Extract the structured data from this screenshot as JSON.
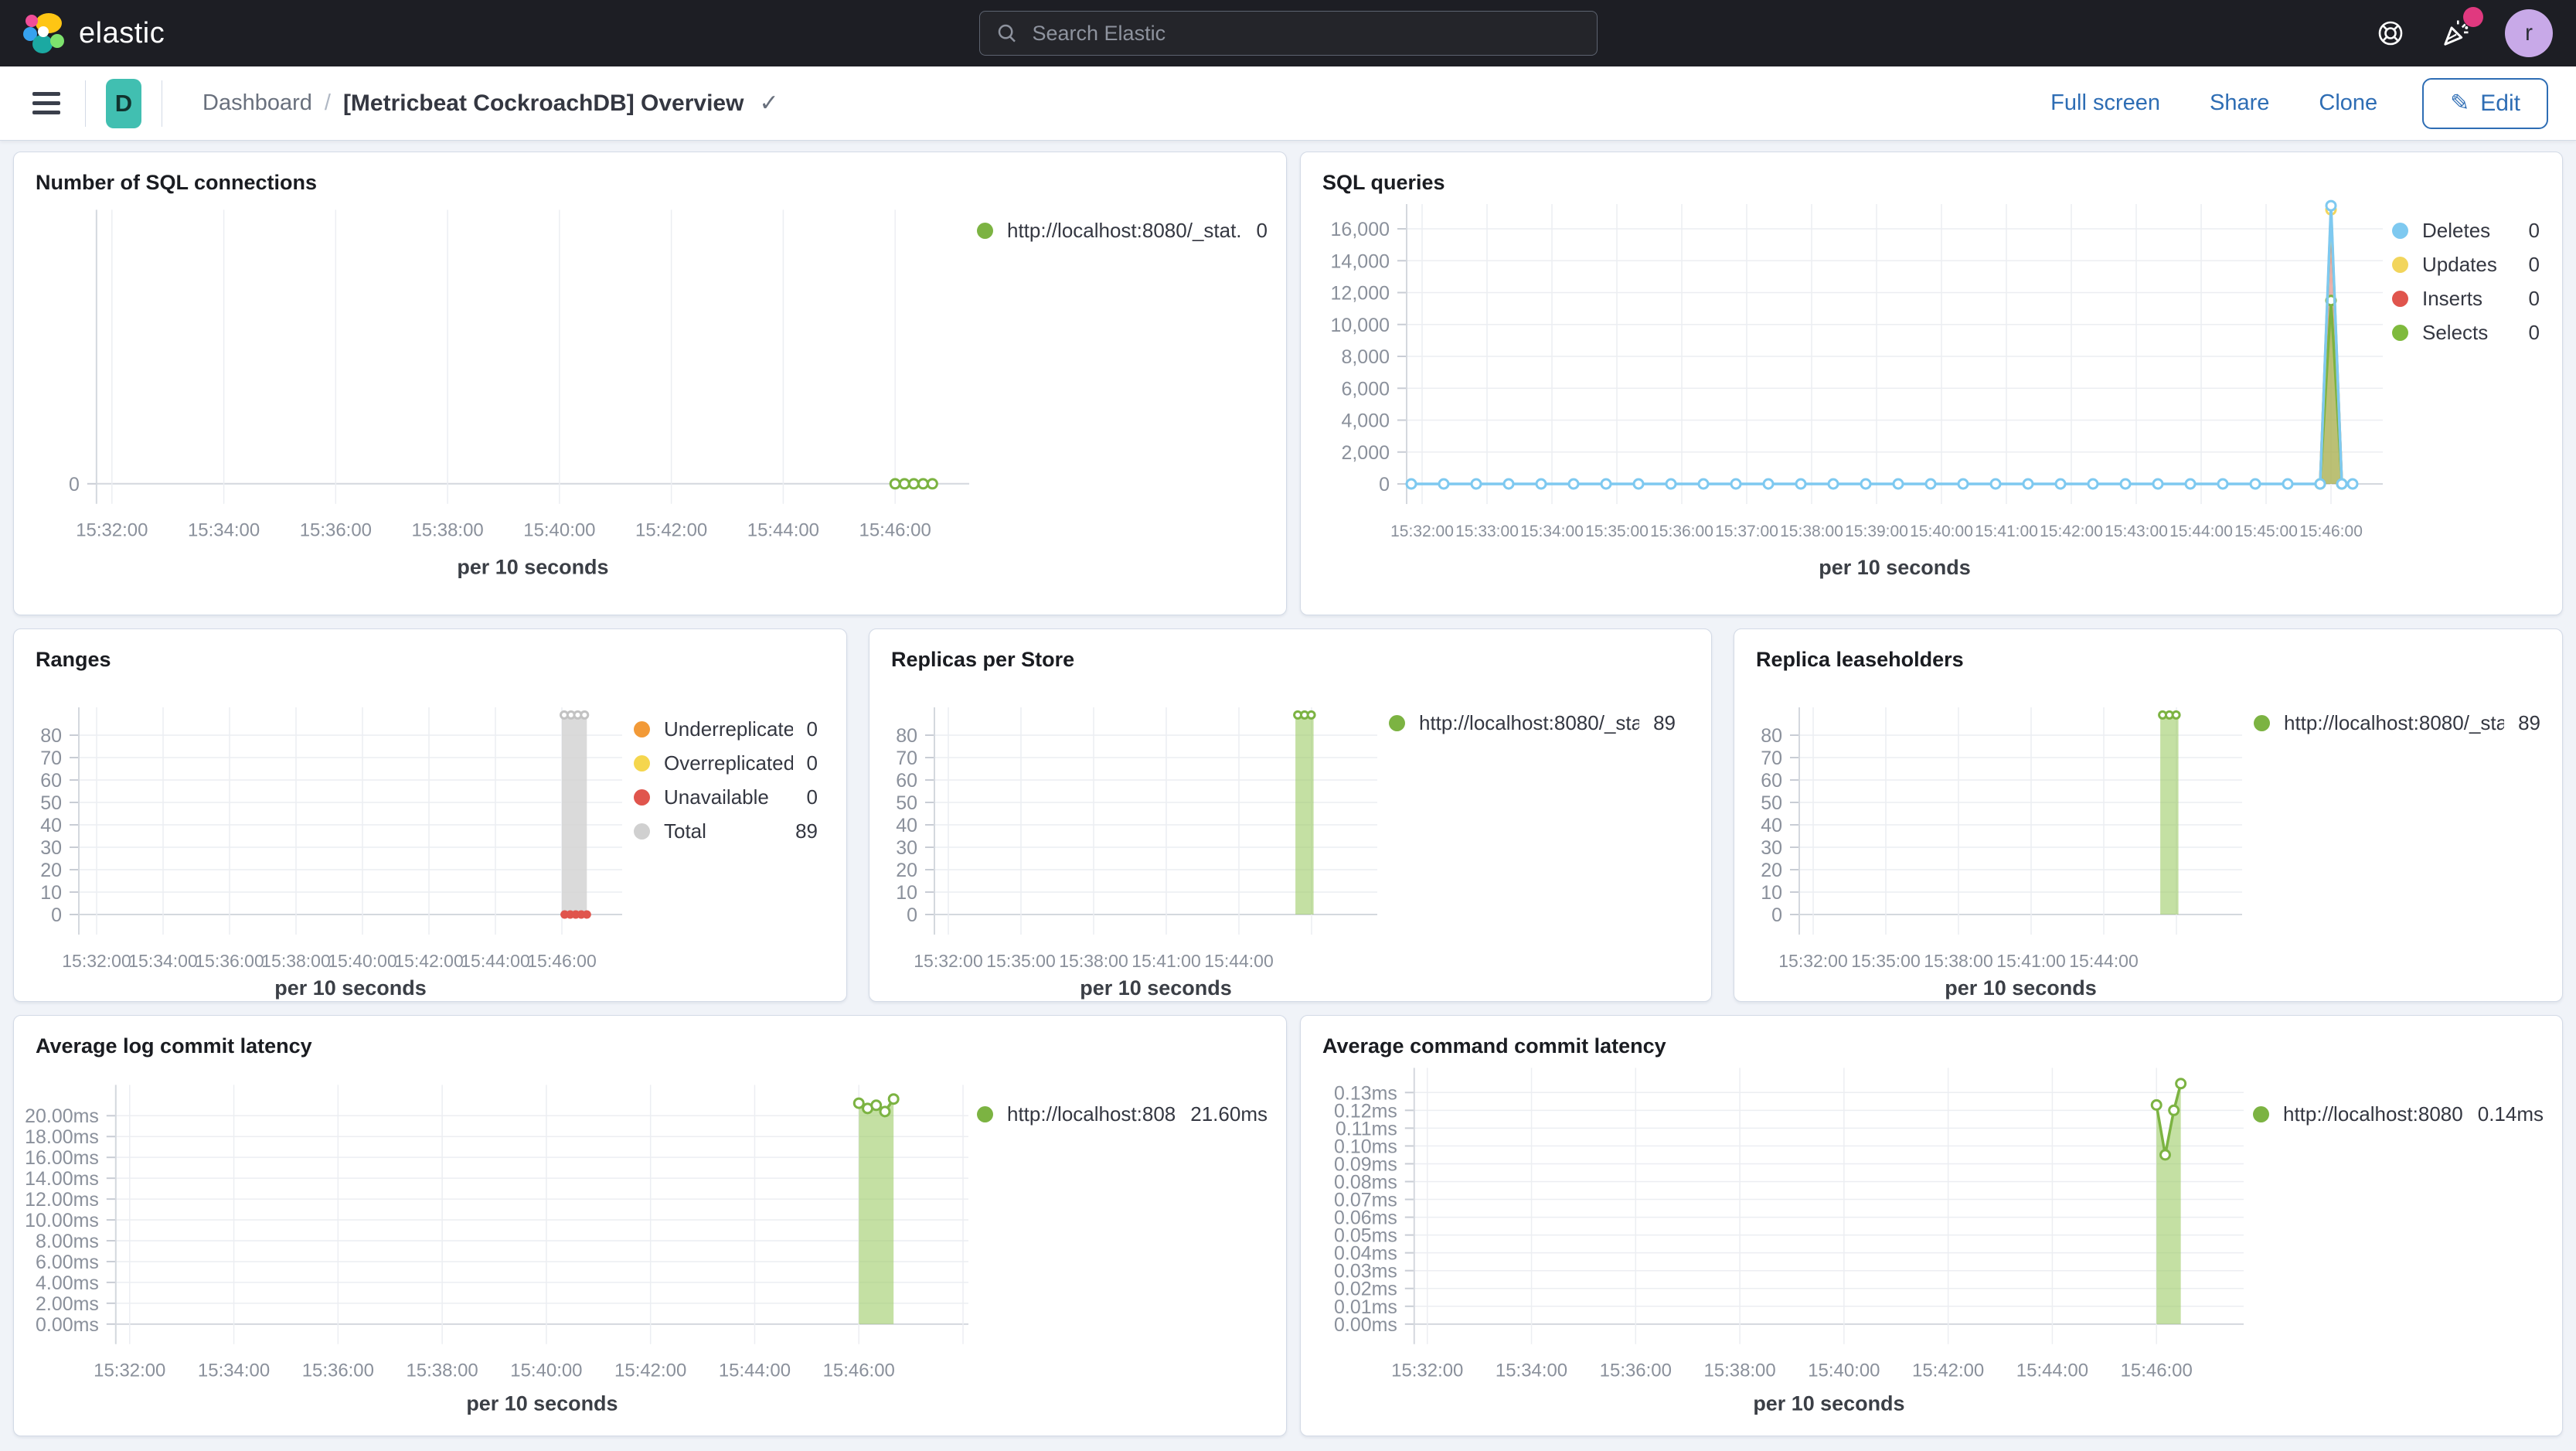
{
  "header": {
    "brand": "elastic",
    "search_placeholder": "Search Elastic",
    "avatar_initial": "r"
  },
  "toolbar": {
    "badge_initial": "D",
    "breadcrumb_app": "Dashboard",
    "breadcrumb_sep": "/",
    "title": "[Metricbeat CockroachDB] Overview",
    "actions": [
      "Full screen",
      "Share",
      "Clone"
    ],
    "edit_label": "Edit"
  },
  "colors": {
    "accent_blue": "#2e6db4",
    "teal_badge": "#41bfb1",
    "series_green": "#7CB342",
    "series_blue": "#7EC9F0",
    "series_yellow": "#F2D55C",
    "series_red": "#E0554D",
    "series_orange": "#F29A38",
    "series_gray": "#C9C9C9"
  },
  "panels": [
    {
      "title": "Number of SQL connections",
      "legend": [
        {
          "label": "http://localhost:8080/_stat...",
          "value": "0",
          "color": "#7CB342"
        }
      ],
      "chart_data": {
        "type": "line",
        "title": "Number of SQL connections",
        "x_axis_label": "per 10 seconds",
        "legend_position": "right",
        "grid": true,
        "ylim": [
          0,
          1
        ],
        "x_ticks": [
          "15:32:00",
          "15:34:00",
          "15:36:00",
          "15:38:00",
          "15:40:00",
          "15:42:00",
          "15:44:00",
          "15:46:00"
        ],
        "y_ticks": [
          {
            "v": 0,
            "label": "0"
          }
        ],
        "series": [
          {
            "name": "http://localhost:8080/_stat...",
            "style": "dotline",
            "color": "#7CB342",
            "points": [
              [
                "15:46:00",
                0
              ],
              [
                "15:46:10",
                0
              ],
              [
                "15:46:20",
                0
              ],
              [
                "15:46:30",
                0
              ],
              [
                "15:46:40",
                0
              ]
            ]
          }
        ]
      }
    },
    {
      "title": "SQL queries",
      "legend": [
        {
          "label": "Deletes",
          "value": "0",
          "color": "#7EC9F0"
        },
        {
          "label": "Updates",
          "value": "0",
          "color": "#F2D55C"
        },
        {
          "label": "Inserts",
          "value": "0",
          "color": "#E0554D"
        },
        {
          "label": "Selects",
          "value": "0",
          "color": "#7FBA3D"
        }
      ],
      "chart_data": {
        "type": "line",
        "title": "SQL queries",
        "x_axis_label": "per 10 seconds",
        "legend_position": "right",
        "grid": true,
        "ylim": [
          0,
          17500
        ],
        "x_ticks": [
          "15:32:00",
          "15:33:00",
          "15:34:00",
          "15:35:00",
          "15:36:00",
          "15:37:00",
          "15:38:00",
          "15:39:00",
          "15:40:00",
          "15:41:00",
          "15:42:00",
          "15:43:00",
          "15:44:00",
          "15:45:00",
          "15:46:00"
        ],
        "y_ticks": [
          {
            "v": 0,
            "label": "0"
          },
          {
            "v": 2000,
            "label": "2,000"
          },
          {
            "v": 4000,
            "label": "4,000"
          },
          {
            "v": 6000,
            "label": "6,000"
          },
          {
            "v": 8000,
            "label": "8,000"
          },
          {
            "v": 10000,
            "label": "10,000"
          },
          {
            "v": 12000,
            "label": "12,000"
          },
          {
            "v": 14000,
            "label": "14,000"
          },
          {
            "v": 16000,
            "label": "16,000"
          }
        ],
        "series": [
          {
            "name": "Inserts",
            "style": "area",
            "color": "#E0554D",
            "fill": "rgba(224,95,82,0.45)",
            "markers": false,
            "points": [
              [
                "15:45:50",
                0
              ],
              [
                "15:46:00",
                17000
              ],
              [
                "15:46:10",
                0
              ]
            ]
          },
          {
            "name": "Selects",
            "style": "area",
            "color": "#7CB342",
            "fill": "rgba(151,199,77,0.6)",
            "markers": true,
            "points": [
              [
                "15:45:50",
                0
              ],
              [
                "15:46:00",
                11500
              ],
              [
                "15:46:10",
                0
              ]
            ]
          },
          {
            "name": "Updates",
            "style": "line",
            "color": "#F2D55C",
            "peak_marker": true,
            "points": [
              [
                "15:45:50",
                0
              ],
              [
                "15:46:00",
                17200
              ],
              [
                "15:46:10",
                0
              ]
            ]
          },
          {
            "name": "Deletes",
            "style": "dotline",
            "color": "#7EC9F0",
            "points": [
              [
                "15:31:50",
                0
              ],
              [
                "15:32:20",
                0
              ],
              [
                "15:32:50",
                0
              ],
              [
                "15:33:20",
                0
              ],
              [
                "15:33:50",
                0
              ],
              [
                "15:34:20",
                0
              ],
              [
                "15:34:50",
                0
              ],
              [
                "15:35:20",
                0
              ],
              [
                "15:35:50",
                0
              ],
              [
                "15:36:20",
                0
              ],
              [
                "15:36:50",
                0
              ],
              [
                "15:37:20",
                0
              ],
              [
                "15:37:50",
                0
              ],
              [
                "15:38:20",
                0
              ],
              [
                "15:38:50",
                0
              ],
              [
                "15:39:20",
                0
              ],
              [
                "15:39:50",
                0
              ],
              [
                "15:40:20",
                0
              ],
              [
                "15:40:50",
                0
              ],
              [
                "15:41:20",
                0
              ],
              [
                "15:41:50",
                0
              ],
              [
                "15:42:20",
                0
              ],
              [
                "15:42:50",
                0
              ],
              [
                "15:43:20",
                0
              ],
              [
                "15:43:50",
                0
              ],
              [
                "15:44:20",
                0
              ],
              [
                "15:44:50",
                0
              ],
              [
                "15:45:20",
                0
              ],
              [
                "15:45:50",
                0
              ],
              [
                "15:46:00",
                17450
              ],
              [
                "15:46:10",
                0
              ],
              [
                "15:46:20",
                0
              ]
            ]
          }
        ]
      }
    },
    {
      "title": "Ranges",
      "legend": [
        {
          "label": "Underreplicated",
          "value": "0",
          "color": "#F29A38"
        },
        {
          "label": "Overreplicated",
          "value": "0",
          "color": "#F5D64E"
        },
        {
          "label": "Unavailable",
          "value": "0",
          "color": "#E0554D"
        },
        {
          "label": "Total",
          "value": "89",
          "color": "#D0D0D0"
        }
      ],
      "chart_data": {
        "type": "bar",
        "title": "Ranges",
        "x_axis_label": "per 10 seconds",
        "legend_position": "right",
        "grid": true,
        "ylim": [
          0,
          89
        ],
        "x_ticks": [
          "15:32:00",
          "15:34:00",
          "15:36:00",
          "15:38:00",
          "15:40:00",
          "15:42:00",
          "15:44:00",
          "15:46:00"
        ],
        "y_ticks": [
          {
            "v": 0,
            "label": "0"
          },
          {
            "v": 10,
            "label": "10"
          },
          {
            "v": 20,
            "label": "20"
          },
          {
            "v": 30,
            "label": "30"
          },
          {
            "v": 40,
            "label": "40"
          },
          {
            "v": 50,
            "label": "50"
          },
          {
            "v": 60,
            "label": "60"
          },
          {
            "v": 70,
            "label": "70"
          },
          {
            "v": 80,
            "label": "80"
          }
        ],
        "series": [
          {
            "name": "Total",
            "style": "bar",
            "color": "#c2c2c2",
            "fill": "rgba(212,212,212,0.85)",
            "points": [
              [
                "15:46:00",
                89
              ],
              [
                "15:46:45",
                89
              ]
            ]
          },
          {
            "name": "Unavailable",
            "style": "dots",
            "color": "#E0554D",
            "points": [
              [
                "15:46:05",
                0
              ],
              [
                "15:46:15",
                0
              ],
              [
                "15:46:25",
                0
              ],
              [
                "15:46:35",
                0
              ],
              [
                "15:46:45",
                0
              ]
            ]
          },
          {
            "name": "Underreplicated",
            "style": "none",
            "color": "#F29A38",
            "points": []
          },
          {
            "name": "Overreplicated",
            "style": "none",
            "color": "#F5D64E",
            "points": []
          }
        ]
      }
    },
    {
      "title": "Replicas per Store",
      "legend": [
        {
          "label": "http://localhost:8080/_sta...",
          "value": "89",
          "color": "#7CB342"
        }
      ],
      "chart_data": {
        "type": "bar",
        "title": "Replicas per Store",
        "x_axis_label": "per 10 seconds",
        "legend_position": "right",
        "grid": true,
        "ylim": [
          0,
          89
        ],
        "x_ticks": [
          "15:32:00",
          "15:35:00",
          "15:38:00",
          "15:41:00",
          "15:44:00"
        ],
        "y_ticks": [
          {
            "v": 0,
            "label": "0"
          },
          {
            "v": 10,
            "label": "10"
          },
          {
            "v": 20,
            "label": "20"
          },
          {
            "v": 30,
            "label": "30"
          },
          {
            "v": 40,
            "label": "40"
          },
          {
            "v": 50,
            "label": "50"
          },
          {
            "v": 60,
            "label": "60"
          },
          {
            "v": 70,
            "label": "70"
          },
          {
            "v": 80,
            "label": "80"
          }
        ],
        "series": [
          {
            "name": "http://localhost:8080/_sta...",
            "style": "bar",
            "color": "#7CB342",
            "fill": "rgba(156,204,101,0.6)",
            "points": [
              [
                "15:46:20",
                89
              ],
              [
                "15:47:05",
                89
              ]
            ]
          }
        ]
      }
    },
    {
      "title": "Replica leaseholders",
      "legend": [
        {
          "label": "http://localhost:8080/_sta...",
          "value": "89",
          "color": "#7CB342"
        }
      ],
      "chart_data": {
        "type": "bar",
        "title": "Replica leaseholders",
        "x_axis_label": "per 10 seconds",
        "legend_position": "right",
        "grid": true,
        "ylim": [
          0,
          89
        ],
        "x_ticks": [
          "15:32:00",
          "15:35:00",
          "15:38:00",
          "15:41:00",
          "15:44:00"
        ],
        "y_ticks": [
          {
            "v": 0,
            "label": "0"
          },
          {
            "v": 10,
            "label": "10"
          },
          {
            "v": 20,
            "label": "20"
          },
          {
            "v": 30,
            "label": "30"
          },
          {
            "v": 40,
            "label": "40"
          },
          {
            "v": 50,
            "label": "50"
          },
          {
            "v": 60,
            "label": "60"
          },
          {
            "v": 70,
            "label": "70"
          },
          {
            "v": 80,
            "label": "80"
          }
        ],
        "series": [
          {
            "name": "http://localhost:8080/_sta...",
            "style": "bar",
            "color": "#7CB342",
            "fill": "rgba(156,204,101,0.6)",
            "points": [
              [
                "15:46:20",
                89
              ],
              [
                "15:47:05",
                89
              ]
            ]
          }
        ]
      }
    },
    {
      "title": "Average log commit latency",
      "legend": [
        {
          "label": "http://localhost:808...",
          "value": "21.60ms",
          "color": "#7CB342"
        }
      ],
      "chart_data": {
        "type": "area",
        "title": "Average log commit latency",
        "x_axis_label": "per 10 seconds",
        "legend_position": "right",
        "grid": true,
        "ylim": [
          0,
          21.6
        ],
        "x_ticks": [
          "15:32:00",
          "15:34:00",
          "15:36:00",
          "15:38:00",
          "15:40:00",
          "15:42:00",
          "15:44:00",
          "15:46:00"
        ],
        "y_ticks": [
          {
            "v": 0,
            "label": "0.00ms"
          },
          {
            "v": 2,
            "label": "2.00ms"
          },
          {
            "v": 4,
            "label": "4.00ms"
          },
          {
            "v": 6,
            "label": "6.00ms"
          },
          {
            "v": 8,
            "label": "8.00ms"
          },
          {
            "v": 10,
            "label": "10.00ms"
          },
          {
            "v": 12,
            "label": "12.00ms"
          },
          {
            "v": 14,
            "label": "14.00ms"
          },
          {
            "v": 16,
            "label": "16.00ms"
          },
          {
            "v": 18,
            "label": "18.00ms"
          },
          {
            "v": 20,
            "label": "20.00ms"
          }
        ],
        "series": [
          {
            "name": "http://localhost:808...",
            "style": "area",
            "color": "#7CB342",
            "fill": "rgba(156,204,101,0.6)",
            "markers": true,
            "points": [
              [
                "15:46:00",
                21.2
              ],
              [
                "15:46:10",
                20.7
              ],
              [
                "15:46:20",
                21.0
              ],
              [
                "15:46:30",
                20.4
              ],
              [
                "15:46:40",
                21.6
              ]
            ]
          }
        ]
      }
    },
    {
      "title": "Average command commit latency",
      "legend": [
        {
          "label": "http://localhost:8080...",
          "value": "0.14ms",
          "color": "#7CB342"
        }
      ],
      "chart_data": {
        "type": "area",
        "title": "Average command commit latency",
        "x_axis_label": "per 10 seconds",
        "legend_position": "right",
        "grid": true,
        "ylim": [
          0,
          0.14
        ],
        "x_ticks": [
          "15:32:00",
          "15:34:00",
          "15:36:00",
          "15:38:00",
          "15:40:00",
          "15:42:00",
          "15:44:00",
          "15:46:00"
        ],
        "y_ticks": [
          {
            "v": 0.0,
            "label": "0.00ms"
          },
          {
            "v": 0.01,
            "label": "0.01ms"
          },
          {
            "v": 0.02,
            "label": "0.02ms"
          },
          {
            "v": 0.03,
            "label": "0.03ms"
          },
          {
            "v": 0.04,
            "label": "0.04ms"
          },
          {
            "v": 0.05,
            "label": "0.05ms"
          },
          {
            "v": 0.06,
            "label": "0.06ms"
          },
          {
            "v": 0.07,
            "label": "0.07ms"
          },
          {
            "v": 0.08,
            "label": "0.08ms"
          },
          {
            "v": 0.09,
            "label": "0.09ms"
          },
          {
            "v": 0.1,
            "label": "0.10ms"
          },
          {
            "v": 0.11,
            "label": "0.11ms"
          },
          {
            "v": 0.12,
            "label": "0.12ms"
          },
          {
            "v": 0.13,
            "label": "0.13ms"
          }
        ],
        "series": [
          {
            "name": "http://localhost:8080...",
            "style": "area",
            "color": "#7CB342",
            "fill": "rgba(156,204,101,0.6)",
            "markers": true,
            "points": [
              [
                "15:46:00",
                0.123
              ],
              [
                "15:46:10",
                0.095
              ],
              [
                "15:46:20",
                0.12
              ],
              [
                "15:46:28",
                0.135
              ]
            ]
          }
        ]
      }
    }
  ]
}
